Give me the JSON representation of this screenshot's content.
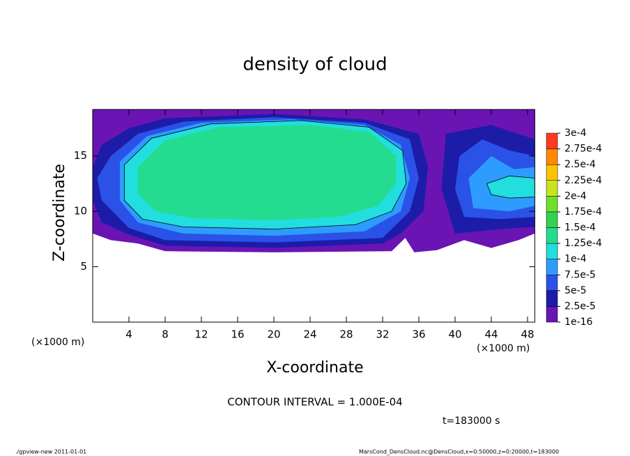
{
  "chart_data": {
    "type": "contour",
    "title": "density of cloud",
    "xlabel": "X-coordinate",
    "ylabel": "Z-coordinate",
    "x_unit": "(×1000 m)",
    "y_unit": "(×1000 m)",
    "xlim": [
      0,
      48.8
    ],
    "ylim": [
      0,
      19.2
    ],
    "xticks": [
      4,
      8,
      12,
      16,
      20,
      24,
      28,
      32,
      36,
      40,
      44,
      48
    ],
    "yticks": [
      5,
      10,
      15
    ],
    "colorbar": {
      "ticks": [
        {
          "value": 1e-16,
          "label": "1e-16"
        },
        {
          "value": 2.5e-05,
          "label": "2.5e-5"
        },
        {
          "value": 5e-05,
          "label": "5e-5"
        },
        {
          "value": 7.5e-05,
          "label": "7.5e-5"
        },
        {
          "value": 0.0001,
          "label": "1e-4"
        },
        {
          "value": 0.000125,
          "label": "1.25e-4"
        },
        {
          "value": 0.00015,
          "label": "1.5e-4"
        },
        {
          "value": 0.000175,
          "label": "1.75e-4"
        },
        {
          "value": 0.0002,
          "label": "2e-4"
        },
        {
          "value": 0.000225,
          "label": "2.25e-4"
        },
        {
          "value": 0.00025,
          "label": "2.5e-4"
        },
        {
          "value": 0.000275,
          "label": "2.75e-4"
        },
        {
          "value": 0.0003,
          "label": "3e-4"
        }
      ],
      "colors": [
        "#6a14b4",
        "#1c1ca8",
        "#2a52e6",
        "#2e9cff",
        "#22dede",
        "#24dc90",
        "#34d24e",
        "#6ee02c",
        "#c8e41e",
        "#fcc400",
        "#ff8a00",
        "#ff3a1e",
        "#ff8c8c"
      ]
    },
    "regions": [
      {
        "value": 1e-05,
        "points": [
          [
            0.2,
            19.2
          ],
          [
            48.8,
            19.2
          ],
          [
            48.8,
            8
          ],
          [
            47,
            7.4
          ],
          [
            44,
            6.7
          ],
          [
            41,
            7.4
          ],
          [
            38,
            6.5
          ],
          [
            35.5,
            6.3
          ],
          [
            34.5,
            7.6
          ],
          [
            33,
            6.4
          ],
          [
            20,
            6.3
          ],
          [
            8,
            6.4
          ],
          [
            5,
            7.1
          ],
          [
            2,
            7.4
          ],
          [
            0,
            8
          ],
          [
            0,
            19.2
          ]
        ]
      },
      {
        "value": 3.5e-05,
        "points": [
          [
            1,
            16
          ],
          [
            4,
            17.5
          ],
          [
            8,
            18.4
          ],
          [
            20,
            18.8
          ],
          [
            30,
            18.3
          ],
          [
            36,
            17
          ],
          [
            37,
            14
          ],
          [
            36.5,
            10
          ],
          [
            34,
            8
          ],
          [
            32,
            7.1
          ],
          [
            20,
            6.7
          ],
          [
            8,
            6.9
          ],
          [
            4,
            7.9
          ],
          [
            1,
            9
          ],
          [
            0,
            11
          ],
          [
            0,
            14
          ]
        ]
      },
      {
        "value": 3.5e-05,
        "points": [
          [
            39,
            17
          ],
          [
            44,
            17.8
          ],
          [
            48.8,
            16.5
          ],
          [
            48.8,
            8.6
          ],
          [
            45,
            8.4
          ],
          [
            40,
            8
          ],
          [
            38.5,
            12
          ]
        ]
      },
      {
        "value": 6e-05,
        "points": [
          [
            2,
            15
          ],
          [
            5,
            17
          ],
          [
            10,
            18.1
          ],
          [
            20,
            18.5
          ],
          [
            30,
            18
          ],
          [
            35,
            16.5
          ],
          [
            36,
            13
          ],
          [
            35,
            10
          ],
          [
            32,
            7.6
          ],
          [
            20,
            7.2
          ],
          [
            8,
            7.4
          ],
          [
            4,
            8.5
          ],
          [
            1,
            11
          ],
          [
            0.5,
            13
          ]
        ]
      },
      {
        "value": 6e-05,
        "points": [
          [
            40.5,
            15
          ],
          [
            43,
            16.5
          ],
          [
            46,
            15.5
          ],
          [
            48.8,
            15
          ],
          [
            48.8,
            9.5
          ],
          [
            45,
            9.3
          ],
          [
            41,
            9.5
          ],
          [
            40,
            12
          ]
        ]
      },
      {
        "value": 9e-05,
        "points": [
          [
            3,
            14.5
          ],
          [
            6,
            16.8
          ],
          [
            12,
            18
          ],
          [
            22,
            18.3
          ],
          [
            30,
            17.8
          ],
          [
            34,
            16
          ],
          [
            35,
            13
          ],
          [
            34,
            10
          ],
          [
            30,
            8.2
          ],
          [
            20,
            7.8
          ],
          [
            10,
            8
          ],
          [
            5,
            9
          ],
          [
            3,
            11
          ]
        ]
      },
      {
        "value": 9e-05,
        "points": [
          [
            41.5,
            13
          ],
          [
            44,
            15
          ],
          [
            46.5,
            13.8
          ],
          [
            48.8,
            14
          ],
          [
            48.8,
            10.5
          ],
          [
            46,
            10
          ],
          [
            42,
            10.3
          ]
        ]
      },
      {
        "value": 0.00011,
        "points": [
          [
            3.5,
            14.2
          ],
          [
            6.5,
            16.6
          ],
          [
            13,
            17.9
          ],
          [
            23,
            18.2
          ],
          [
            30.5,
            17.6
          ],
          [
            34.2,
            15.5
          ],
          [
            34.6,
            12.5
          ],
          [
            33,
            10
          ],
          [
            29,
            8.8
          ],
          [
            20,
            8.4
          ],
          [
            10,
            8.6
          ],
          [
            5.5,
            9.3
          ],
          [
            3.5,
            11
          ]
        ]
      },
      {
        "value": 0.00014,
        "points": [
          [
            5,
            14
          ],
          [
            8,
            16.4
          ],
          [
            14,
            17.6
          ],
          [
            24,
            17.8
          ],
          [
            30.5,
            17.2
          ],
          [
            33.5,
            15
          ],
          [
            33.5,
            12.5
          ],
          [
            31.5,
            10.5
          ],
          [
            27,
            9.5
          ],
          [
            20,
            9.2
          ],
          [
            11,
            9.4
          ],
          [
            7,
            10
          ],
          [
            5,
            11.5
          ]
        ]
      },
      {
        "value": 0.00011,
        "points": [
          [
            43.5,
            12.5
          ],
          [
            46,
            13.2
          ],
          [
            48.8,
            13
          ],
          [
            48.8,
            11.3
          ],
          [
            46,
            11.2
          ],
          [
            44,
            11.5
          ]
        ]
      }
    ],
    "contour_interval": "CONTOUR INTERVAL = 1.000E-04",
    "time_label": "t=183000 s",
    "footer_left": "./gpview-new  2011-01-01",
    "footer_right": "MarsCond_DensCloud.nc@DensCloud,x=0:50000,z=0:20000,t=183000"
  }
}
